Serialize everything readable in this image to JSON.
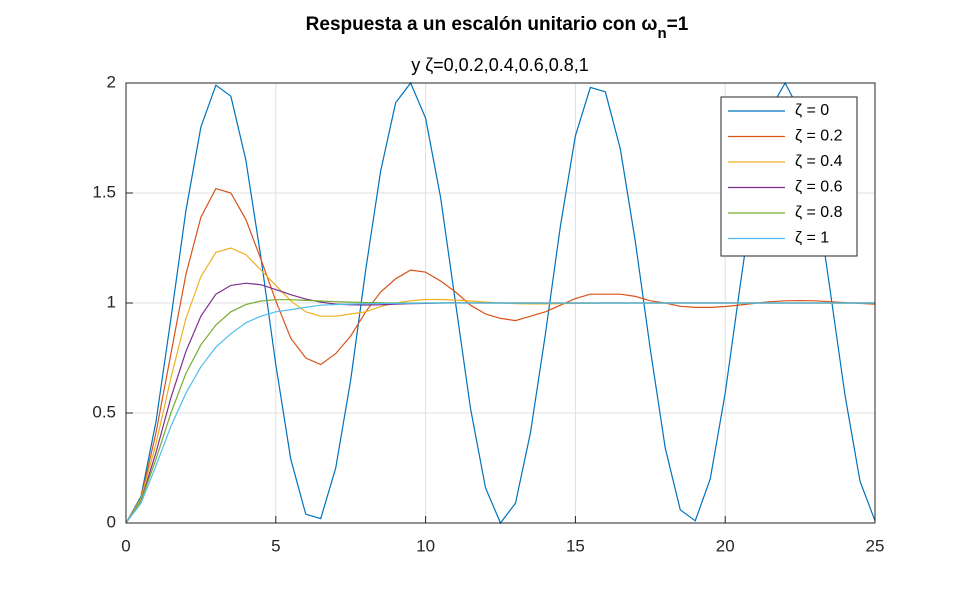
{
  "chart_data": {
    "type": "line",
    "title": {
      "main": "Respuesta a un escalón unitario con ω",
      "sub": "n",
      "tail": "=1"
    },
    "subtitle": "y ζ=0,0.2,0.4,0.6,0.8,1",
    "x": [
      0,
      0.5,
      1,
      1.5,
      2,
      2.5,
      3,
      3.5,
      4,
      4.5,
      5,
      5.5,
      6,
      6.5,
      7,
      7.5,
      8,
      8.5,
      9,
      9.5,
      10,
      10.5,
      11,
      11.5,
      12,
      12.5,
      13,
      13.5,
      14,
      14.5,
      15,
      15.5,
      16,
      16.5,
      17,
      17.5,
      18,
      18.5,
      19,
      19.5,
      20,
      20.5,
      21,
      21.5,
      22,
      22.5,
      23,
      23.5,
      24,
      24.5,
      25
    ],
    "series": [
      {
        "name": "ζ = 0",
        "color": "#0072bd",
        "values": [
          0,
          0.12,
          0.46,
          0.93,
          1.42,
          1.8,
          1.99,
          1.94,
          1.65,
          1.21,
          0.72,
          0.29,
          0.04,
          0.02,
          0.25,
          0.65,
          1.15,
          1.6,
          1.91,
          2,
          1.84,
          1.48,
          1,
          0.52,
          0.16,
          0,
          0.09,
          0.41,
          0.86,
          1.35,
          1.76,
          1.98,
          1.96,
          1.7,
          1.28,
          0.79,
          0.34,
          0.06,
          0.01,
          0.2,
          0.59,
          1.08,
          1.55,
          1.88,
          2,
          1.87,
          1.53,
          1.06,
          0.58,
          0.19,
          0.01
        ]
      },
      {
        "name": "ζ = 0.2",
        "color": "#d95319",
        "values": [
          0,
          0.11,
          0.41,
          0.77,
          1.13,
          1.39,
          1.52,
          1.5,
          1.38,
          1.2,
          1.01,
          0.84,
          0.75,
          0.72,
          0.77,
          0.85,
          0.96,
          1.05,
          1.11,
          1.15,
          1.14,
          1.1,
          1.05,
          0.99,
          0.95,
          0.93,
          0.92,
          0.94,
          0.96,
          0.99,
          1.02,
          1.04,
          1.04,
          1.04,
          1.03,
          1.01,
          1,
          0.985,
          0.98,
          0.98,
          0.984,
          0.991,
          0.999,
          1.006,
          1.01,
          1.011,
          1.01,
          1.006,
          1.002,
          0.998,
          0.995
        ]
      },
      {
        "name": "ζ = 0.4",
        "color": "#edb120",
        "values": [
          0,
          0.11,
          0.36,
          0.66,
          0.93,
          1.12,
          1.23,
          1.25,
          1.22,
          1.15,
          1.08,
          1.01,
          0.96,
          0.94,
          0.94,
          0.95,
          0.96,
          0.984,
          1,
          1.01,
          1.016,
          1.016,
          1.013,
          1.009,
          1.004,
          1,
          0.997,
          0.996,
          0.996,
          0.997,
          0.998,
          0.999,
          1,
          1,
          1,
          1,
          1,
          1,
          1,
          1,
          1,
          1,
          1,
          1,
          1,
          1,
          1,
          1,
          1,
          1,
          1
        ]
      },
      {
        "name": "ζ = 0.6",
        "color": "#7e2f8e",
        "values": [
          0,
          0.1,
          0.32,
          0.57,
          0.78,
          0.94,
          1.04,
          1.08,
          1.09,
          1.083,
          1.061,
          1.038,
          1.018,
          1.004,
          0.995,
          0.992,
          0.991,
          0.992,
          0.995,
          0.997,
          0.998,
          1,
          1.001,
          1,
          1,
          1,
          1,
          1,
          1,
          1,
          1,
          1,
          1,
          1,
          1,
          1,
          1,
          1,
          1,
          1,
          1,
          1,
          1,
          1,
          1,
          1,
          1,
          1,
          1,
          1,
          1
        ]
      },
      {
        "name": "ζ = 0.8",
        "color": "#77ac30",
        "values": [
          0,
          0.1,
          0.29,
          0.5,
          0.68,
          0.81,
          0.9,
          0.96,
          0.993,
          1.009,
          1.015,
          1.015,
          1.012,
          1.009,
          1.006,
          1.004,
          1.002,
          1.001,
          1,
          1,
          1,
          1,
          1,
          1,
          1,
          1,
          1,
          1,
          1,
          1,
          1,
          1,
          1,
          1,
          1,
          1,
          1,
          1,
          1,
          1,
          1,
          1,
          1,
          1,
          1,
          1,
          1,
          1,
          1,
          1,
          1
        ]
      },
      {
        "name": "ζ = 1",
        "color": "#4dbeee",
        "values": [
          0,
          0.09,
          0.26,
          0.44,
          0.59,
          0.71,
          0.8,
          0.86,
          0.91,
          0.94,
          0.96,
          0.97,
          0.98,
          0.99,
          0.993,
          0.995,
          0.997,
          0.998,
          0.999,
          0.999,
          1,
          1,
          1,
          1,
          1,
          1,
          1,
          1,
          1,
          1,
          1,
          1,
          1,
          1,
          1,
          1,
          1,
          1,
          1,
          1,
          1,
          1,
          1,
          1,
          1,
          1,
          1,
          1,
          1,
          1,
          1
        ]
      }
    ],
    "xlim": [
      0,
      25
    ],
    "xticks": [
      0,
      5,
      10,
      15,
      20,
      25
    ],
    "ylim": [
      0,
      2
    ],
    "yticks": [
      0,
      0.5,
      1,
      1.5,
      2
    ],
    "grid": true,
    "legend": "top-right"
  }
}
